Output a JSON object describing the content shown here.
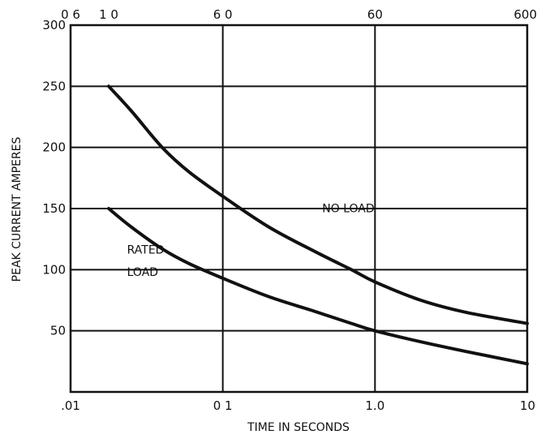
{
  "chart_data": {
    "type": "line",
    "xscale": "log",
    "xlim": [
      0.01,
      10
    ],
    "ylim": [
      0,
      300
    ],
    "grid": true,
    "xlabel": "TIME IN SECONDS",
    "ylabel": "PEAK CURRENT AMPERES",
    "x_ticks": [
      {
        "value": 0.01,
        "label": ".01"
      },
      {
        "value": 0.1,
        "label": "0 1"
      },
      {
        "value": 1.0,
        "label": "1.0"
      },
      {
        "value": 10,
        "label": "10"
      }
    ],
    "top_ticks": [
      {
        "value": 0.01,
        "label": "0 6"
      },
      {
        "value": 0.0178,
        "label": "1 0"
      },
      {
        "value": 0.1,
        "label": "6 0"
      },
      {
        "value": 1.0,
        "label": "60"
      },
      {
        "value": 10,
        "label": "600"
      }
    ],
    "y_ticks": [
      {
        "value": 300,
        "label": "300"
      },
      {
        "value": 250,
        "label": "250"
      },
      {
        "value": 200,
        "label": "200"
      },
      {
        "value": 150,
        "label": "150"
      },
      {
        "value": 100,
        "label": "100"
      },
      {
        "value": 50,
        "label": "50"
      }
    ],
    "series": [
      {
        "x": [
          0.0178,
          0.025,
          0.04,
          0.06,
          0.1,
          0.2,
          0.4,
          0.7,
          1.0,
          2,
          4,
          10
        ],
        "y": [
          250,
          230,
          200,
          180,
          160,
          135,
          115,
          100,
          90,
          75,
          65,
          56
        ]
      },
      {
        "x": [
          0.0178,
          0.025,
          0.04,
          0.06,
          0.1,
          0.2,
          0.4,
          0.7,
          1.0,
          2,
          4,
          10
        ],
        "y": [
          150,
          135,
          117,
          105,
          93,
          78,
          66,
          56,
          50,
          41,
          33,
          23
        ]
      }
    ],
    "annotations": [
      {
        "text": "NO LOAD",
        "x": 0.45,
        "y": 147
      },
      {
        "text": "RATED",
        "x": 0.0235,
        "y": 113
      },
      {
        "text": "LOAD",
        "x": 0.0235,
        "y": 95
      }
    ]
  }
}
